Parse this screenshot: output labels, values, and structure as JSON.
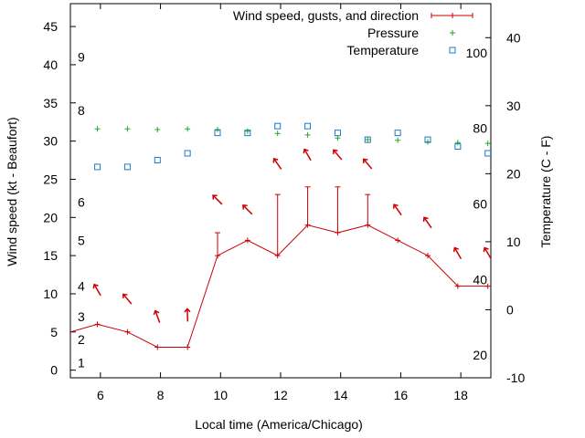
{
  "chart_data": {
    "type": "line",
    "title": "",
    "xlabel": "Local time (America/Chicago)",
    "ylabel": "Wind speed (kt - Beaufort)",
    "y2label": "Temperature (C - F)",
    "xlim": [
      5,
      19
    ],
    "ylim": [
      -1,
      48
    ],
    "y2lim": [
      -10,
      45
    ],
    "x_ticks": [
      6,
      8,
      10,
      12,
      14,
      16,
      18
    ],
    "y_ticks": [
      0,
      5,
      10,
      15,
      20,
      25,
      30,
      35,
      40,
      45
    ],
    "y2_ticks": [
      -10,
      0,
      10,
      20,
      30,
      40
    ],
    "beaufort_labels": [
      {
        "label": "1",
        "kt": 1
      },
      {
        "label": "2",
        "kt": 4
      },
      {
        "label": "3",
        "kt": 7
      },
      {
        "label": "4",
        "kt": 11
      },
      {
        "label": "5",
        "kt": 17
      },
      {
        "label": "6",
        "kt": 22
      },
      {
        "label": "8",
        "kt": 34
      },
      {
        "label": "9",
        "kt": 41
      }
    ],
    "fahrenheit_labels": [
      {
        "label": "20",
        "f": 20
      },
      {
        "label": "40",
        "f": 40
      },
      {
        "label": "60",
        "f": 60
      },
      {
        "label": "80",
        "f": 80
      },
      {
        "label": "100",
        "f": 100
      }
    ],
    "legend": [
      {
        "label": "Wind speed, gusts, and direction",
        "color": "#cc0000",
        "marker": "line-plus"
      },
      {
        "label": "Pressure",
        "color": "#22aa22",
        "marker": "plus"
      },
      {
        "label": "Temperature",
        "color": "#1f78c8",
        "marker": "square"
      }
    ],
    "legend_position": "top-right",
    "series": [
      {
        "name": "Wind speed",
        "color": "#cc0000",
        "x": [
          5,
          5.9,
          6.9,
          7.9,
          8.9,
          9.9,
          10.9,
          11.9,
          12.9,
          13.9,
          14.9,
          15.9,
          16.9,
          17.9,
          18.9
        ],
        "values": [
          5,
          6,
          5,
          3,
          3,
          15,
          17,
          15,
          19,
          18,
          19,
          17,
          15,
          11,
          11
        ]
      },
      {
        "name": "Gusts",
        "color": "#cc0000",
        "x": [
          9.9,
          11.9,
          12.9,
          13.9,
          14.9
        ],
        "values": [
          18,
          23,
          24,
          24,
          23
        ]
      },
      {
        "name": "Wind direction arrows",
        "color": "#cc0000",
        "arrows": [
          {
            "x": 5.9,
            "y": 10.5,
            "angle": 150
          },
          {
            "x": 6.9,
            "y": 9.3,
            "angle": 140
          },
          {
            "x": 7.9,
            "y": 7.0,
            "angle": 160
          },
          {
            "x": 8.9,
            "y": 7.2,
            "angle": 178
          },
          {
            "x": 9.9,
            "y": 22.3,
            "angle": 135
          },
          {
            "x": 10.9,
            "y": 21.0,
            "angle": 135
          },
          {
            "x": 11.9,
            "y": 27.0,
            "angle": 145
          },
          {
            "x": 12.9,
            "y": 28.2,
            "angle": 150
          },
          {
            "x": 13.9,
            "y": 28.2,
            "angle": 140
          },
          {
            "x": 14.9,
            "y": 27.0,
            "angle": 140
          },
          {
            "x": 15.9,
            "y": 21.0,
            "angle": 145
          },
          {
            "x": 16.9,
            "y": 19.3,
            "angle": 145
          },
          {
            "x": 17.9,
            "y": 15.3,
            "angle": 150
          },
          {
            "x": 18.9,
            "y": 15.3,
            "angle": 150
          }
        ]
      },
      {
        "name": "Pressure",
        "color": "#22aa22",
        "x": [
          5.9,
          6.9,
          7.9,
          8.9,
          9.9,
          10.9,
          11.9,
          12.9,
          13.9,
          14.9,
          15.9,
          16.9,
          17.9,
          18.9
        ],
        "values": [
          31.6,
          31.6,
          31.5,
          31.6,
          31.5,
          31.3,
          31.0,
          30.8,
          30.4,
          30.2,
          30.1,
          29.9,
          29.8,
          29.7
        ]
      },
      {
        "name": "Temperature",
        "color": "#1f78c8",
        "x": [
          5.9,
          6.9,
          7.9,
          8.9,
          9.9,
          10.9,
          11.9,
          12.9,
          13.9,
          14.9,
          15.9,
          16.9,
          17.9,
          18.9
        ],
        "values": [
          21,
          21,
          22,
          23,
          26,
          26,
          27,
          27,
          26,
          25,
          26,
          25,
          24,
          23
        ]
      }
    ]
  }
}
